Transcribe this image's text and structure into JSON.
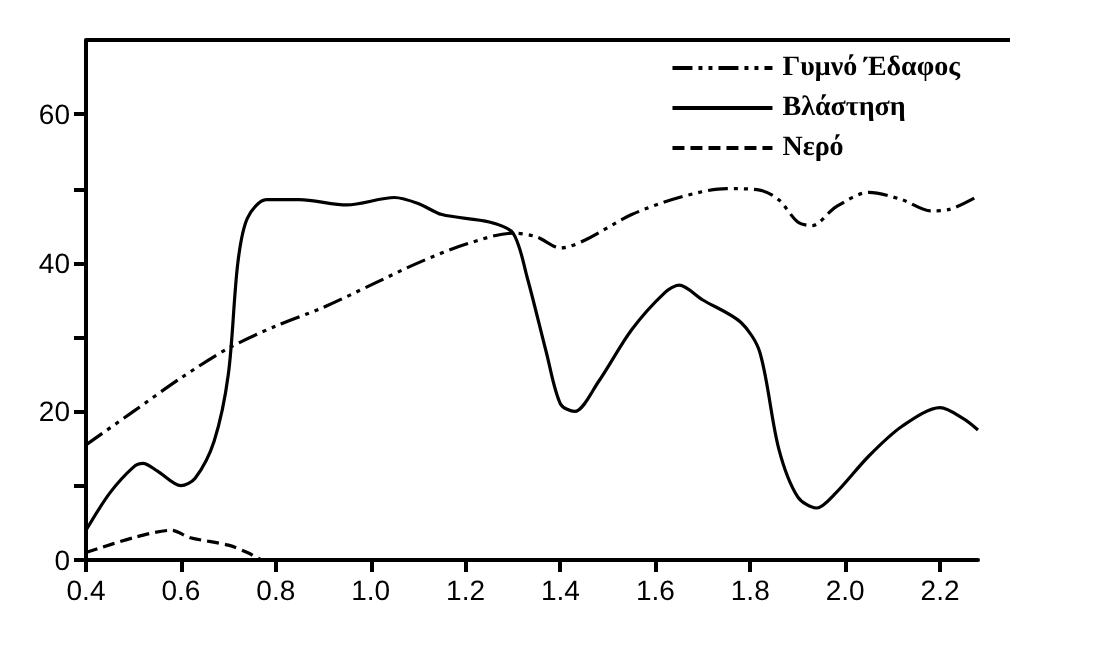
{
  "chart_data": {
    "type": "line",
    "xlim": [
      0.4,
      2.28
    ],
    "xticks": [
      0.4,
      0.6,
      0.8,
      "1.0",
      1.2,
      1.4,
      1.6,
      1.8,
      "2.0",
      2.2
    ],
    "ylim": [
      0,
      70
    ],
    "yticks": [
      0,
      {
        "value": 10,
        "label": null
      },
      20,
      {
        "value": 30,
        "label": null
      },
      40,
      {
        "value": 50,
        "label": null
      },
      60
    ],
    "grid": false,
    "legend": "top right",
    "marker": "none",
    "series": [
      {
        "name": "Γυμνό Έδαφος",
        "color": "#000000",
        "line_style": "dotted",
        "x": [
          0.4,
          0.5,
          0.6,
          0.7,
          0.8,
          0.9,
          1.0,
          1.1,
          1.2,
          1.3,
          1.35,
          1.4,
          1.45,
          1.55,
          1.65,
          1.75,
          1.82,
          1.86,
          1.9,
          1.93,
          1.98,
          2.05,
          2.12,
          2.18,
          2.22,
          2.28
        ],
        "values": [
          15.5,
          20,
          24.5,
          28.5,
          31.5,
          34,
          37,
          40,
          42.5,
          44,
          43.5,
          42,
          43,
          46.5,
          48.8,
          50,
          49.8,
          48.5,
          45.5,
          45,
          47.5,
          49.5,
          48.5,
          47,
          47.2,
          49
        ]
      },
      {
        "name": "Βλάστηση",
        "color": "#000000",
        "line_style": "solid",
        "x": [
          0.4,
          0.45,
          0.5,
          0.52,
          0.55,
          0.6,
          0.63,
          0.67,
          0.7,
          0.72,
          0.74,
          0.78,
          0.85,
          0.95,
          1.05,
          1.1,
          1.15,
          1.25,
          1.3,
          1.33,
          1.37,
          1.4,
          1.43,
          1.48,
          1.55,
          1.62,
          1.65,
          1.7,
          1.78,
          1.82,
          1.86,
          1.9,
          1.94,
          1.98,
          2.05,
          2.12,
          2.2,
          2.25,
          2.28
        ],
        "values": [
          4,
          9,
          12.5,
          13,
          12,
          10,
          11,
          16,
          25,
          40,
          46,
          48.5,
          48.5,
          47.8,
          48.8,
          48,
          46.5,
          45.5,
          44,
          38,
          28,
          21,
          20,
          24,
          31,
          36,
          37,
          35,
          32,
          28,
          15,
          8.5,
          7,
          9,
          14,
          18,
          20.5,
          19,
          17.5
        ]
      },
      {
        "name": "Νερό",
        "color": "#000000",
        "line_style": "dashed",
        "x": [
          0.4,
          0.5,
          0.58,
          0.62,
          0.7,
          0.74,
          0.77
        ],
        "values": [
          1,
          3,
          4,
          3,
          2,
          1,
          0
        ]
      }
    ]
  }
}
